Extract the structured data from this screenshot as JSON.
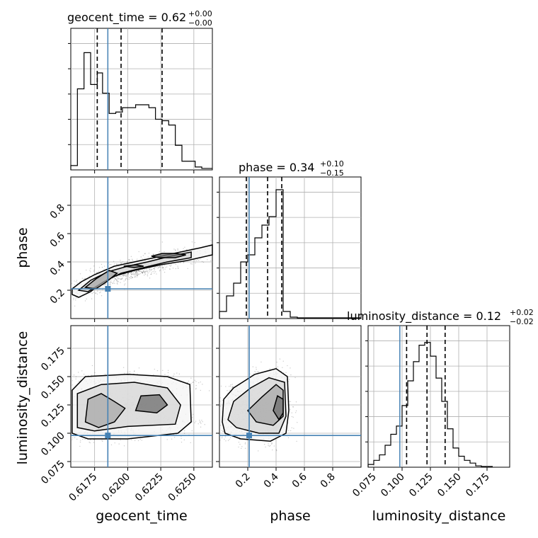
{
  "chart_data": {
    "type": "corner",
    "truth_color": "#4682b4",
    "parameters": [
      {
        "name": "geocent_time",
        "title_main": "geocent_time = 0.62",
        "title_plus": "+0.00",
        "title_minus": "−0.00",
        "range": [
          0.6157,
          0.6264
        ],
        "ticks": [
          0.6175,
          0.62,
          0.6225,
          0.625
        ],
        "tick_labels": [
          "0.6175",
          "0.6200",
          "0.6225",
          "0.6250"
        ],
        "truth": 0.6185,
        "quantiles": [
          0.6177,
          0.6195,
          0.6226
        ],
        "hist_max": 0.9,
        "hist_edges": [
          0.6157,
          0.6162,
          0.6167,
          0.6172,
          0.6177,
          0.6181,
          0.6186,
          0.6191,
          0.6196,
          0.6201,
          0.6206,
          0.6211,
          0.6216,
          0.6221,
          0.6226,
          0.6231,
          0.6236,
          0.6241,
          0.6246,
          0.6251,
          0.6256,
          0.6264
        ],
        "hist": [
          0.03,
          0.56,
          0.81,
          0.59,
          0.67,
          0.53,
          0.39,
          0.4,
          0.43,
          0.43,
          0.45,
          0.45,
          0.43,
          0.35,
          0.34,
          0.31,
          0.17,
          0.06,
          0.06,
          0.02,
          0.01
        ]
      },
      {
        "name": "phase",
        "title_main": "phase = 0.34",
        "title_plus": "+0.10",
        "title_minus": "−0.15",
        "range": [
          0.0,
          1.0
        ],
        "ticks": [
          0.2,
          0.4,
          0.6,
          0.8
        ],
        "tick_labels": [
          "0.2",
          "0.4",
          "0.6",
          "0.8"
        ],
        "truth": 0.21,
        "quantiles": [
          0.19,
          0.34,
          0.44
        ],
        "hist_max": 0.92,
        "hist_edges": [
          0.0,
          0.05,
          0.1,
          0.15,
          0.2,
          0.25,
          0.3,
          0.35,
          0.4,
          0.45,
          0.5,
          0.55,
          0.6,
          0.65,
          0.7,
          0.75,
          0.8,
          0.85,
          0.9,
          0.95,
          1.0
        ],
        "hist": [
          0.05,
          0.16,
          0.25,
          0.4,
          0.45,
          0.57,
          0.66,
          0.72,
          0.91,
          0.05,
          0.01,
          0.005,
          0.005,
          0.005,
          0.005,
          0.005,
          0.005,
          0.005,
          0.005,
          0.005
        ]
      },
      {
        "name": "luminosity_distance",
        "title_main": "luminosity_distance = 0.12",
        "title_plus": "+0.02",
        "title_minus": "−0.02",
        "range": [
          0.07,
          0.195
        ],
        "ticks": [
          0.075,
          0.1,
          0.125,
          0.15,
          0.175
        ],
        "tick_labels": [
          "0.075",
          "0.100",
          "0.125",
          "0.150",
          "0.175"
        ],
        "truth": 0.098,
        "quantiles": [
          0.104,
          0.122,
          0.138
        ],
        "hist_max": 0.95,
        "hist_edges": [
          0.07,
          0.075,
          0.08,
          0.085,
          0.09,
          0.095,
          0.1,
          0.105,
          0.11,
          0.115,
          0.12,
          0.125,
          0.13,
          0.135,
          0.14,
          0.145,
          0.15,
          0.155,
          0.16,
          0.165,
          0.17,
          0.18
        ],
        "hist": [
          0.02,
          0.05,
          0.09,
          0.16,
          0.24,
          0.3,
          0.45,
          0.63,
          0.77,
          0.89,
          0.91,
          0.81,
          0.65,
          0.48,
          0.28,
          0.14,
          0.08,
          0.05,
          0.03,
          0.01,
          0.005
        ]
      }
    ],
    "pairs": [
      {
        "x_param": 0,
        "y_param": 1,
        "truth_point": [
          0.6185,
          0.21
        ],
        "contours": [
          [
            [
              0.6158,
              0.21
            ],
            [
              0.6165,
              0.26
            ],
            [
              0.6175,
              0.31
            ],
            [
              0.619,
              0.37
            ],
            [
              0.6205,
              0.4
            ],
            [
              0.622,
              0.43
            ],
            [
              0.624,
              0.47
            ],
            [
              0.6255,
              0.5
            ],
            [
              0.6264,
              0.52
            ],
            [
              0.6264,
              0.45
            ],
            [
              0.6245,
              0.41
            ],
            [
              0.6225,
              0.38
            ],
            [
              0.6205,
              0.34
            ],
            [
              0.619,
              0.3
            ],
            [
              0.618,
              0.25
            ],
            [
              0.6172,
              0.19
            ],
            [
              0.6163,
              0.15
            ],
            [
              0.6158,
              0.17
            ]
          ],
          [
            [
              0.6163,
              0.2
            ],
            [
              0.6172,
              0.27
            ],
            [
              0.6185,
              0.33
            ],
            [
              0.62,
              0.37
            ],
            [
              0.6215,
              0.4
            ],
            [
              0.6232,
              0.44
            ],
            [
              0.6248,
              0.47
            ],
            [
              0.6248,
              0.43
            ],
            [
              0.623,
              0.4
            ],
            [
              0.6212,
              0.36
            ],
            [
              0.6195,
              0.32
            ],
            [
              0.6182,
              0.26
            ],
            [
              0.617,
              0.19
            ]
          ],
          [
            [
              0.6168,
              0.22
            ],
            [
              0.6176,
              0.28
            ],
            [
              0.6186,
              0.34
            ],
            [
              0.6192,
              0.32
            ],
            [
              0.6184,
              0.26
            ],
            [
              0.6176,
              0.21
            ]
          ],
          [
            [
              0.6197,
              0.37
            ],
            [
              0.6206,
              0.38
            ],
            [
              0.6212,
              0.37
            ],
            [
              0.6205,
              0.36
            ]
          ],
          [
            [
              0.6218,
              0.44
            ],
            [
              0.6226,
              0.46
            ],
            [
              0.6236,
              0.46
            ],
            [
              0.6244,
              0.45
            ],
            [
              0.6236,
              0.43
            ],
            [
              0.6224,
              0.43
            ]
          ]
        ]
      },
      {
        "x_param": 0,
        "y_param": 2,
        "truth_point": [
          0.6185,
          0.098
        ],
        "contours": [
          [
            [
              0.6158,
              0.1
            ],
            [
              0.6158,
              0.138
            ],
            [
              0.6168,
              0.15
            ],
            [
              0.62,
              0.152
            ],
            [
              0.623,
              0.15
            ],
            [
              0.6247,
              0.143
            ],
            [
              0.6248,
              0.11
            ],
            [
              0.6238,
              0.1
            ],
            [
              0.62,
              0.095
            ],
            [
              0.617,
              0.095
            ]
          ],
          [
            [
              0.6162,
              0.105
            ],
            [
              0.6162,
              0.135
            ],
            [
              0.618,
              0.143
            ],
            [
              0.6205,
              0.145
            ],
            [
              0.623,
              0.14
            ],
            [
              0.624,
              0.125
            ],
            [
              0.6236,
              0.108
            ],
            [
              0.62,
              0.106
            ],
            [
              0.6175,
              0.102
            ]
          ],
          [
            [
              0.6168,
              0.11
            ],
            [
              0.617,
              0.13
            ],
            [
              0.618,
              0.135
            ],
            [
              0.619,
              0.128
            ],
            [
              0.6198,
              0.122
            ],
            [
              0.619,
              0.11
            ],
            [
              0.6178,
              0.105
            ]
          ],
          [
            [
              0.6206,
              0.12
            ],
            [
              0.621,
              0.133
            ],
            [
              0.6224,
              0.134
            ],
            [
              0.623,
              0.125
            ],
            [
              0.6222,
              0.118
            ]
          ]
        ]
      },
      {
        "x_param": 1,
        "y_param": 2,
        "truth_point": [
          0.21,
          0.098
        ],
        "contours": [
          [
            [
              0.02,
              0.11
            ],
            [
              0.03,
              0.13
            ],
            [
              0.1,
              0.14
            ],
            [
              0.25,
              0.152
            ],
            [
              0.4,
              0.157
            ],
            [
              0.48,
              0.15
            ],
            [
              0.49,
              0.12
            ],
            [
              0.47,
              0.1
            ],
            [
              0.36,
              0.093
            ],
            [
              0.15,
              0.095
            ],
            [
              0.04,
              0.1
            ]
          ],
          [
            [
              0.06,
              0.112
            ],
            [
              0.1,
              0.128
            ],
            [
              0.22,
              0.14
            ],
            [
              0.35,
              0.149
            ],
            [
              0.46,
              0.145
            ],
            [
              0.47,
              0.115
            ],
            [
              0.42,
              0.1
            ],
            [
              0.28,
              0.1
            ],
            [
              0.12,
              0.105
            ]
          ],
          [
            [
              0.2,
              0.12
            ],
            [
              0.3,
              0.132
            ],
            [
              0.4,
              0.143
            ],
            [
              0.45,
              0.138
            ],
            [
              0.45,
              0.115
            ],
            [
              0.38,
              0.107
            ],
            [
              0.26,
              0.11
            ]
          ],
          [
            [
              0.38,
              0.12
            ],
            [
              0.41,
              0.133
            ],
            [
              0.45,
              0.13
            ],
            [
              0.45,
              0.118
            ],
            [
              0.42,
              0.112
            ]
          ]
        ]
      }
    ]
  }
}
